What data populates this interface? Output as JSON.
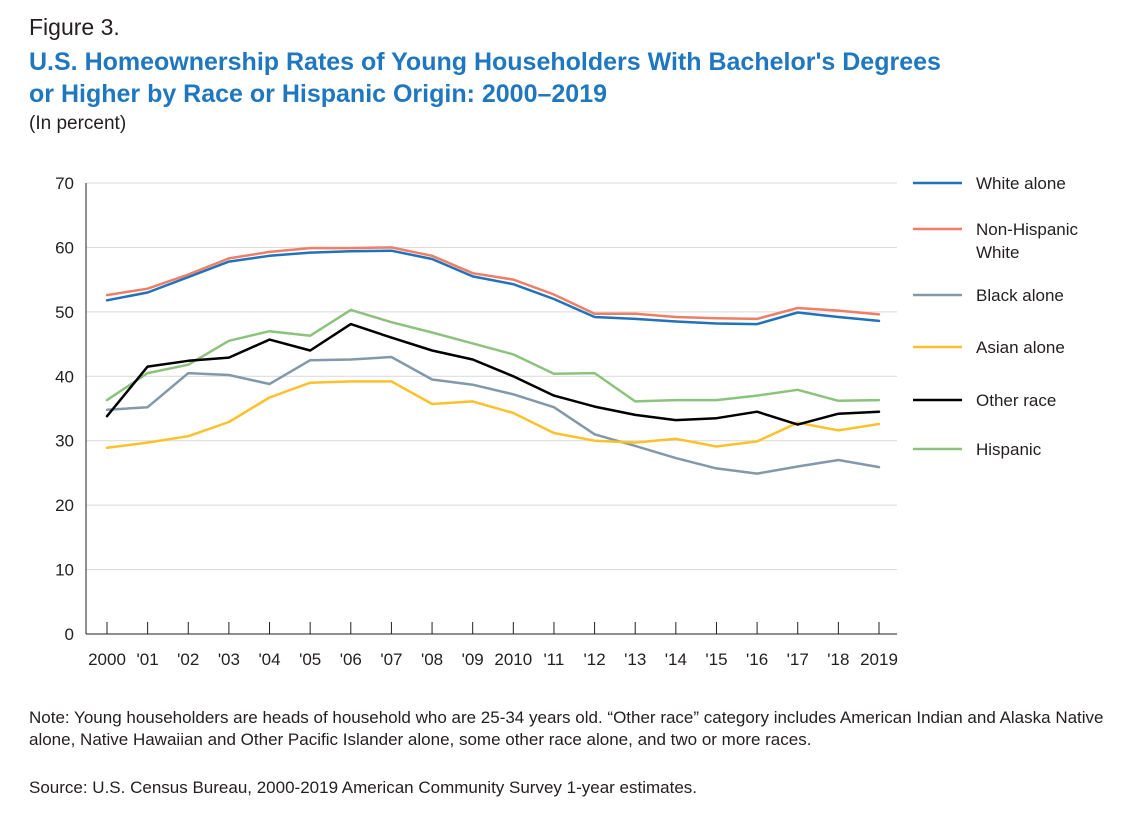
{
  "figure_label": "Figure 3.",
  "title_line1": "U.S. Homeownership Rates of Young Householders With Bachelor's Degrees",
  "title_line2": "or Higher by Race or Hispanic Origin: 2000–2019",
  "units": "(In percent)",
  "note": "Note: Young householders are heads of household who are 25-34 years old. “Other race” category includes American Indian and Alaska Native alone, Native Hawaiian and Other Pacific Islander alone, some other race alone, and two or more races.",
  "source": "Source: U.S. Census Bureau, 2000-2019 American Community Survey 1-year estimates.",
  "chart_data": {
    "type": "line",
    "categories": [
      "2000",
      "'01",
      "'02",
      "'03",
      "'04",
      "'05",
      "'06",
      "'07",
      "'08",
      "'09",
      "2010",
      "'11",
      "'12",
      "'13",
      "'14",
      "'15",
      "'16",
      "'17",
      "'18",
      "2019"
    ],
    "ylim": [
      0,
      70
    ],
    "yticks": [
      0,
      10,
      20,
      30,
      40,
      50,
      60,
      70
    ],
    "grid": true,
    "legend_position": "right",
    "series": [
      {
        "name": "White alone",
        "color": "#1f72bb",
        "values": [
          51.8,
          53.0,
          55.4,
          57.8,
          58.7,
          59.2,
          59.4,
          59.5,
          58.2,
          55.5,
          54.3,
          52.0,
          49.2,
          48.9,
          48.5,
          48.2,
          48.1,
          49.9,
          49.2,
          48.6
        ]
      },
      {
        "name": "Non-Hispanic White",
        "color": "#ef7e64",
        "values": [
          52.6,
          53.6,
          55.8,
          58.3,
          59.3,
          59.9,
          59.9,
          60.0,
          58.7,
          56.0,
          55.0,
          52.7,
          49.7,
          49.7,
          49.2,
          49.0,
          48.9,
          50.6,
          50.2,
          49.6
        ]
      },
      {
        "name": "Black alone",
        "color": "#8399aa",
        "values": [
          34.8,
          35.2,
          40.5,
          40.2,
          38.8,
          42.5,
          42.6,
          43.0,
          39.5,
          38.7,
          37.2,
          35.2,
          31.0,
          29.2,
          27.3,
          25.7,
          24.9,
          26.0,
          27.0,
          25.9
        ]
      },
      {
        "name": "Asian alone",
        "color": "#fcc12b",
        "values": [
          28.9,
          29.7,
          30.7,
          32.9,
          36.7,
          39.0,
          39.2,
          39.2,
          35.7,
          36.1,
          34.3,
          31.2,
          30.0,
          29.7,
          30.3,
          29.1,
          29.9,
          32.8,
          31.6,
          32.6
        ]
      },
      {
        "name": "Other race",
        "color": "#000000",
        "values": [
          33.8,
          41.5,
          42.4,
          42.9,
          45.7,
          44.0,
          48.1,
          46.0,
          44.0,
          42.6,
          40.0,
          37.0,
          35.3,
          34.0,
          33.2,
          33.5,
          34.5,
          32.5,
          34.2,
          34.5
        ]
      },
      {
        "name": "Hispanic",
        "color": "#8cc37c",
        "values": [
          36.3,
          40.5,
          41.8,
          45.5,
          47.0,
          46.3,
          50.3,
          48.4,
          46.8,
          45.1,
          43.4,
          40.4,
          40.5,
          36.1,
          36.3,
          36.3,
          37.0,
          37.9,
          36.2,
          36.3
        ]
      }
    ]
  }
}
